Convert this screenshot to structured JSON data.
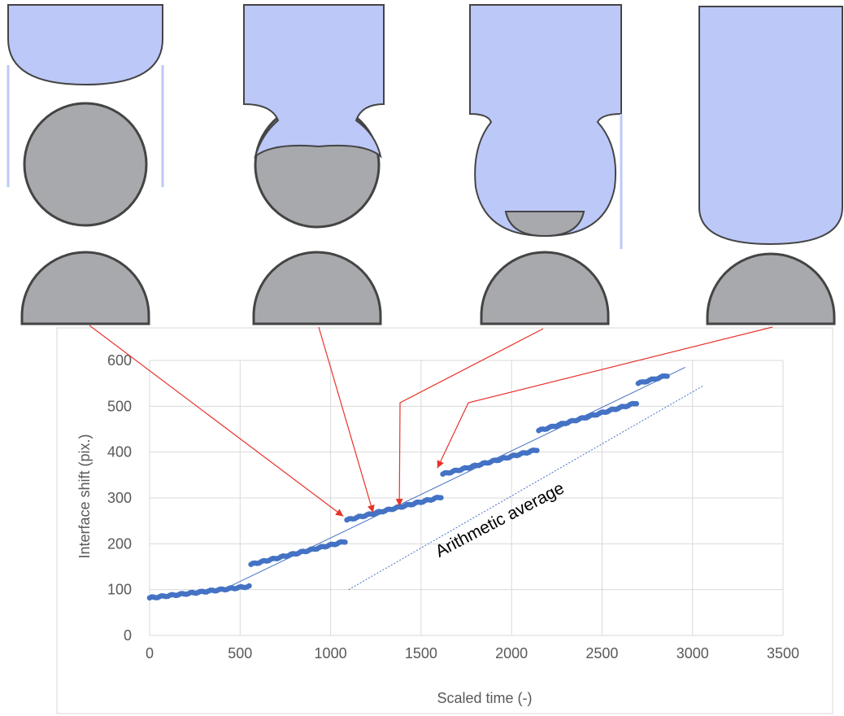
{
  "chart_data": {
    "type": "scatter",
    "xlabel": "Scaled time (-)",
    "ylabel": "Interface shift (pix.)",
    "xlim": [
      0,
      3500
    ],
    "ylim": [
      0,
      600
    ],
    "x_ticks": [
      0,
      500,
      1000,
      1500,
      2000,
      2500,
      3000,
      3500
    ],
    "y_ticks": [
      0,
      100,
      200,
      300,
      400,
      500,
      600
    ],
    "x_tick_labels": [
      "0",
      "500",
      "1000",
      "1500",
      "2000",
      "2500",
      "3000",
      "3500"
    ],
    "y_tick_labels": [
      "0",
      "100",
      "200",
      "300",
      "400",
      "500",
      "600"
    ],
    "grid": true,
    "legend": "none",
    "marker_color": "#4472C4",
    "arrow_color": "#E8332A",
    "interface_color": "#BCC8F8",
    "solid_color": "#A7A9AC",
    "segments": [
      {
        "x0": 0,
        "x1": 550,
        "y0": 82,
        "y1": 107,
        "n": 50
      },
      {
        "x0": 560,
        "x1": 1080,
        "y0": 155,
        "y1": 205,
        "n": 48
      },
      {
        "x0": 1090,
        "x1": 1610,
        "y0": 252,
        "y1": 302,
        "n": 48
      },
      {
        "x0": 1620,
        "x1": 2140,
        "y0": 352,
        "y1": 405,
        "n": 48
      },
      {
        "x0": 2150,
        "x1": 2690,
        "y0": 447,
        "y1": 507,
        "n": 48
      },
      {
        "x0": 2700,
        "x1": 2860,
        "y0": 550,
        "y1": 567,
        "n": 14
      }
    ],
    "trend_lines": [
      {
        "style": "solid",
        "x": [
          380,
          2960
        ],
        "y": [
          95,
          585
        ]
      },
      {
        "style": "dotted",
        "x": [
          1100,
          3060
        ],
        "y": [
          100,
          545
        ]
      }
    ],
    "annotations": [
      {
        "text": "Arithmetic average",
        "x": 1600,
        "y": 170,
        "rotate": -27.5
      }
    ],
    "arrows": [
      {
        "panel": 1,
        "to_x": 1070,
        "to_y": 260
      },
      {
        "panel": 2,
        "to_x": 1235,
        "to_y": 268
      },
      {
        "panel": 3,
        "to_x": 1380,
        "to_y": 282
      },
      {
        "panel": 4,
        "to_x": 1590,
        "to_y": 365
      }
    ],
    "panels": [
      {
        "stage": 1,
        "solid_cap_fraction": 0.0
      },
      {
        "stage": 2,
        "solid_cap_fraction": 0.55
      },
      {
        "stage": 3,
        "solid_cap_fraction": 0.18
      },
      {
        "stage": 4,
        "solid_cap_fraction": 1.0
      }
    ]
  }
}
